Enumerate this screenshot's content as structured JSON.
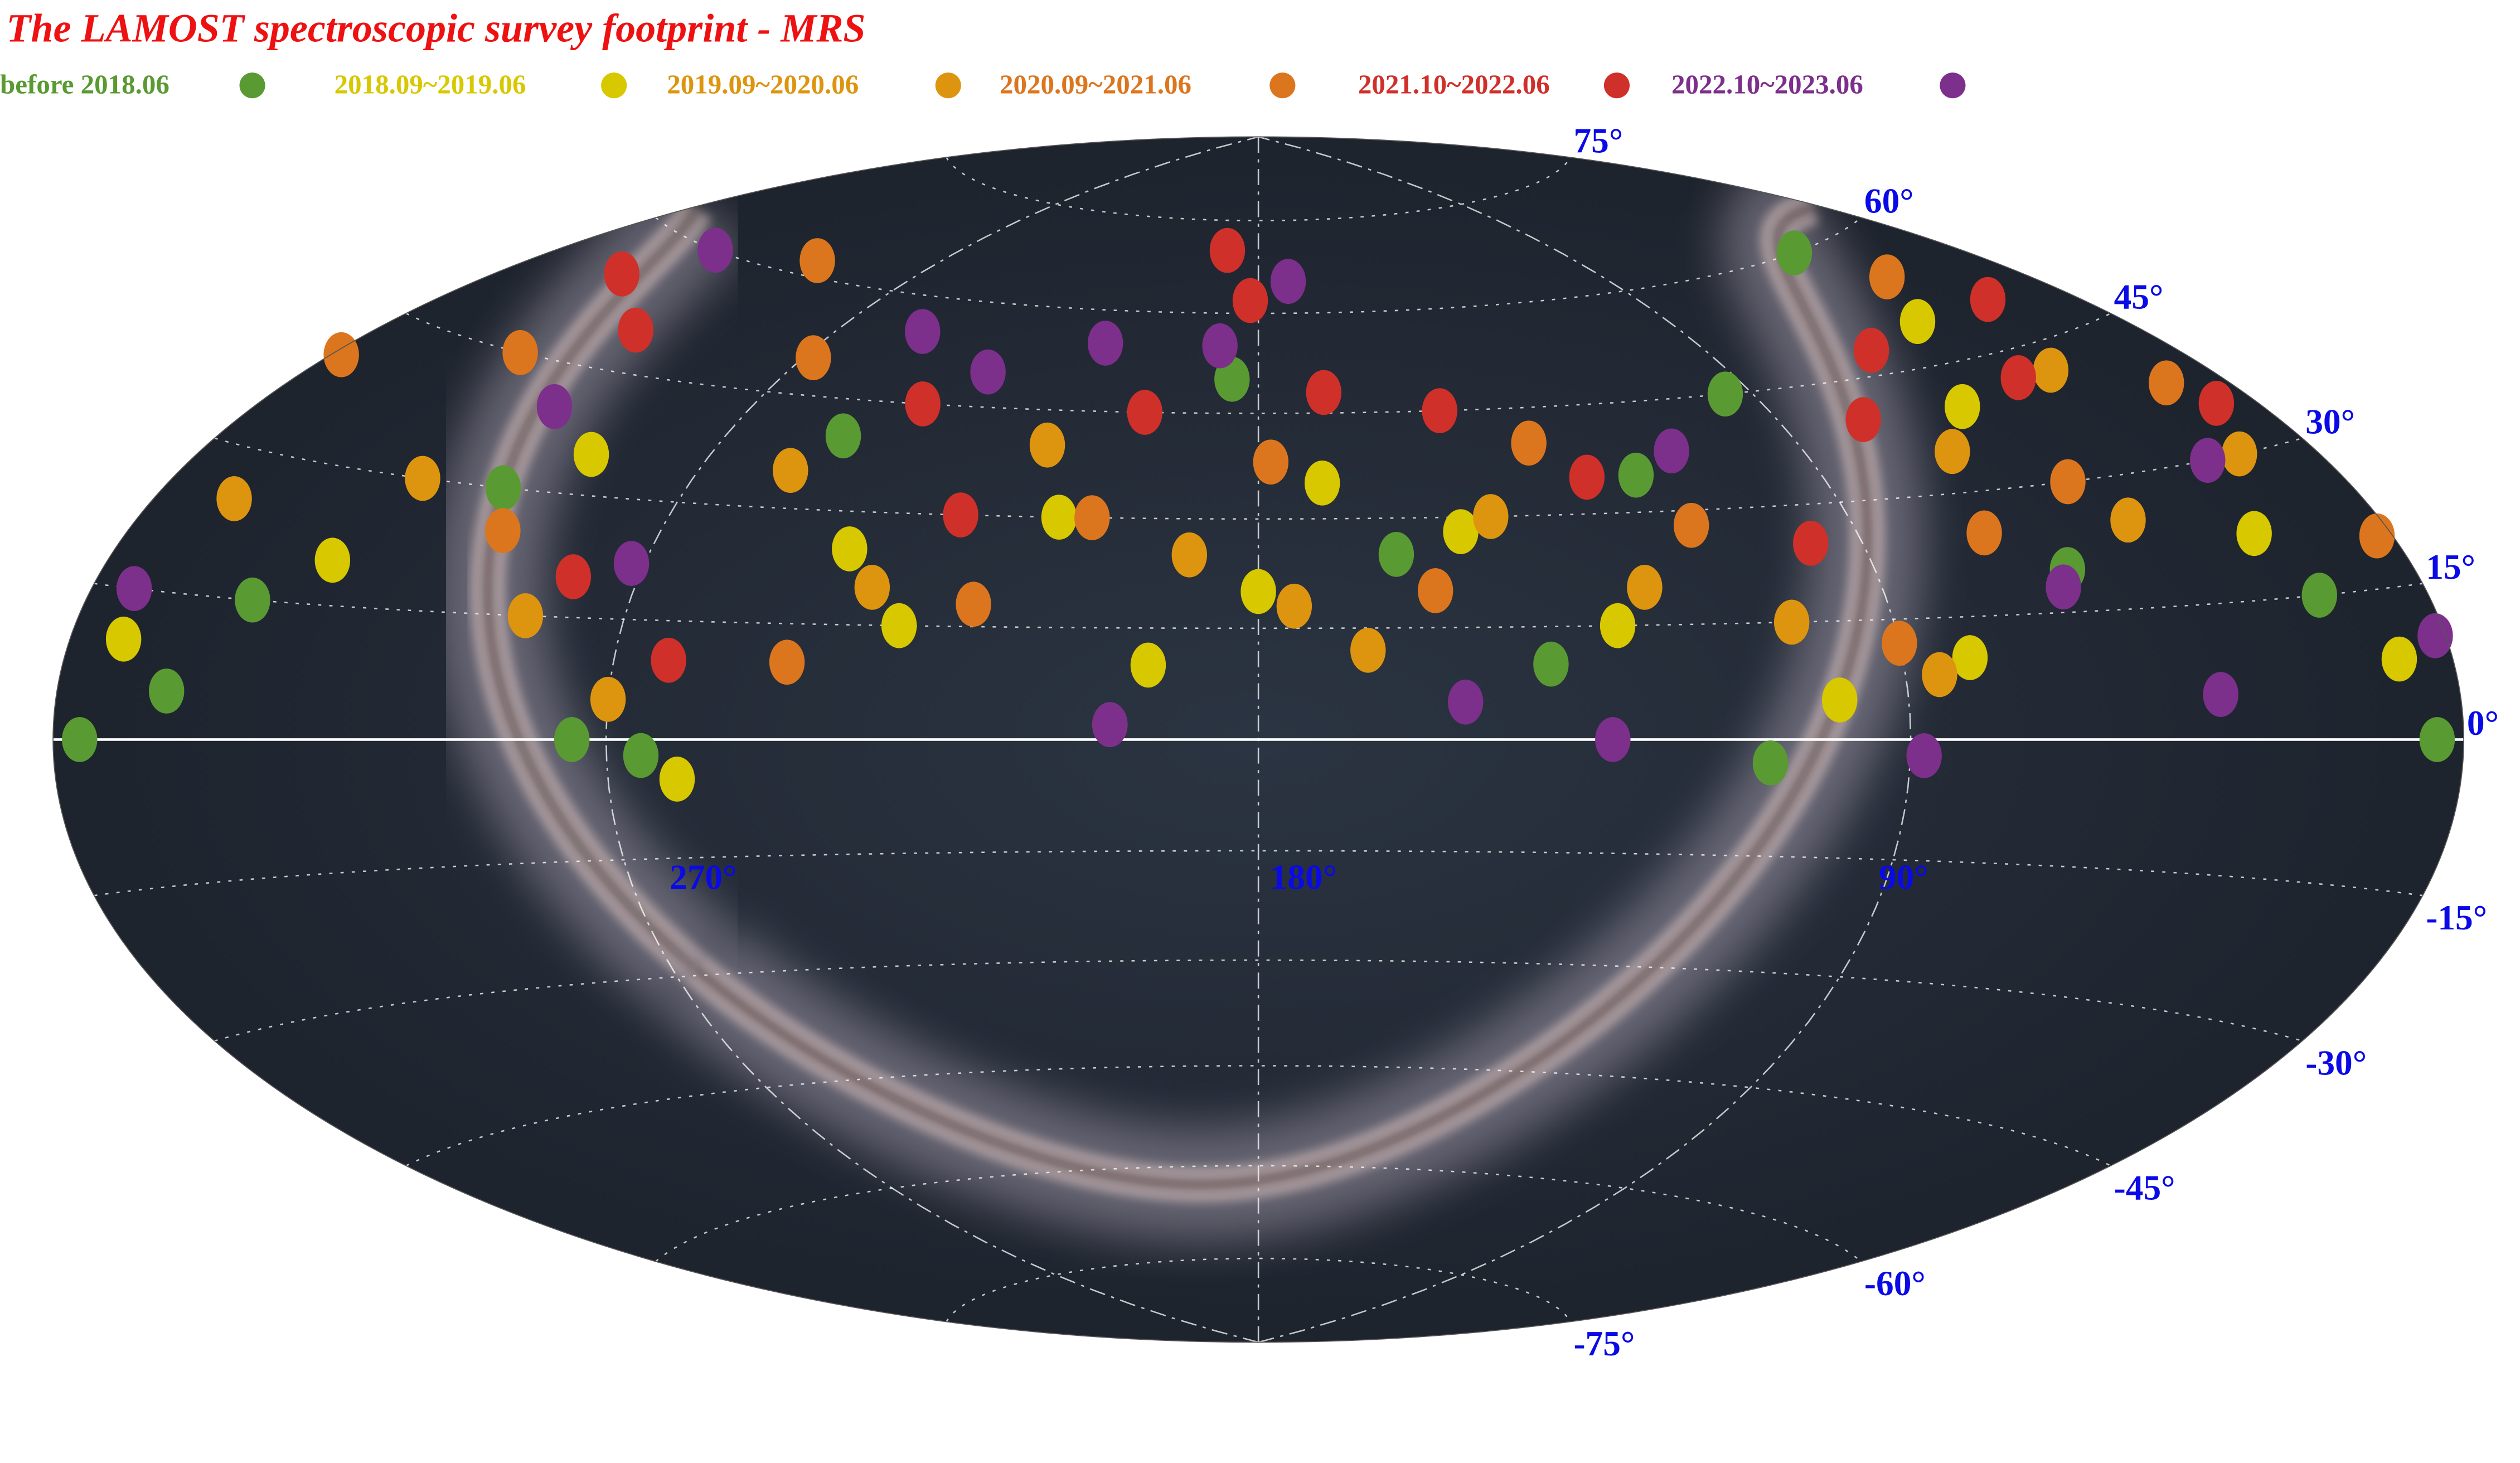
{
  "chart_data": {
    "type": "skymap",
    "title": "The LAMOST spectroscopic survey footprint - MRS",
    "xticks": [
      {
        "value": 270,
        "label": "270°"
      },
      {
        "value": 180,
        "label": "180°"
      },
      {
        "value": 90,
        "label": "90°"
      }
    ],
    "yticks": [
      {
        "value": 75,
        "label": "75°"
      },
      {
        "value": 60,
        "label": "60°"
      },
      {
        "value": 45,
        "label": "45°"
      },
      {
        "value": 30,
        "label": "30°"
      },
      {
        "value": 15,
        "label": "15°"
      },
      {
        "value": 0,
        "label": "0°"
      },
      {
        "value": -15,
        "label": "-15°"
      },
      {
        "value": -30,
        "label": "-30°"
      },
      {
        "value": -45,
        "label": "-45°"
      },
      {
        "value": -60,
        "label": "-60°"
      },
      {
        "value": -75,
        "label": "-75°"
      }
    ],
    "series": [
      {
        "name": "before 2018.06",
        "color": "#5a9a33",
        "x": [
          355,
          340,
          330,
          300,
          265,
          250,
          200,
          185,
          160,
          140,
          120,
          95,
          60,
          35,
          20,
          5,
          275,
          110
        ],
        "y": [
          0,
          5,
          15,
          30,
          -2,
          40,
          2,
          50,
          25,
          10,
          35,
          45,
          20,
          60,
          15,
          0,
          0,
          -3
        ]
      },
      {
        "name": "2018.09~2019.06",
        "color": "#d8c800",
        "x": [
          350,
          320,
          290,
          240,
          230,
          210,
          195,
          180,
          170,
          150,
          130,
          100,
          80,
          55,
          40,
          25,
          10,
          260
        ],
        "y": [
          10,
          20,
          35,
          25,
          15,
          30,
          10,
          20,
          35,
          28,
          15,
          5,
          10,
          40,
          50,
          22,
          8,
          -5
        ]
      },
      {
        "name": "2019.09~2020.06",
        "color": "#dd9510",
        "x": [
          345,
          315,
          285,
          255,
          235,
          215,
          190,
          175,
          165,
          145,
          125,
          105,
          85,
          65,
          45,
          30,
          15,
          270
        ],
        "y": [
          25,
          30,
          15,
          35,
          20,
          40,
          25,
          18,
          12,
          30,
          20,
          15,
          8,
          35,
          25,
          42,
          30,
          5
        ]
      },
      {
        "name": "2020.09~2021.06",
        "color": "#dc761e",
        "x": [
          358,
          325,
          295,
          268,
          245,
          220,
          205,
          178,
          155,
          135,
          115,
          90,
          70,
          50,
          28,
          12,
          3,
          300
        ],
        "y": [
          40,
          45,
          25,
          50,
          10,
          18,
          30,
          38,
          20,
          40,
          28,
          12,
          25,
          30,
          55,
          38,
          20,
          62
        ]
      },
      {
        "name": "2021.10~2022.06",
        "color": "#d0302a",
        "x": [
          335,
          310,
          280,
          262,
          240,
          225,
          200,
          182,
          168,
          148,
          128,
          98,
          75,
          58,
          38,
          18,
          8,
          190
        ],
        "y": [
          55,
          50,
          20,
          10,
          45,
          30,
          45,
          62,
          48,
          45,
          35,
          25,
          40,
          48,
          42,
          50,
          35,
          70
        ]
      },
      {
        "name": "2022.10~2023.06",
        "color": "#7d2f8c",
        "x": [
          352,
          328,
          305,
          272,
          252,
          232,
          212,
          188,
          172,
          152,
          132,
          112,
          88,
          62,
          42,
          22,
          2,
          200
        ],
        "y": [
          15,
          60,
          40,
          22,
          55,
          50,
          55,
          55,
          65,
          5,
          0,
          38,
          -2,
          18,
          5,
          30,
          10,
          2
        ]
      }
    ]
  }
}
